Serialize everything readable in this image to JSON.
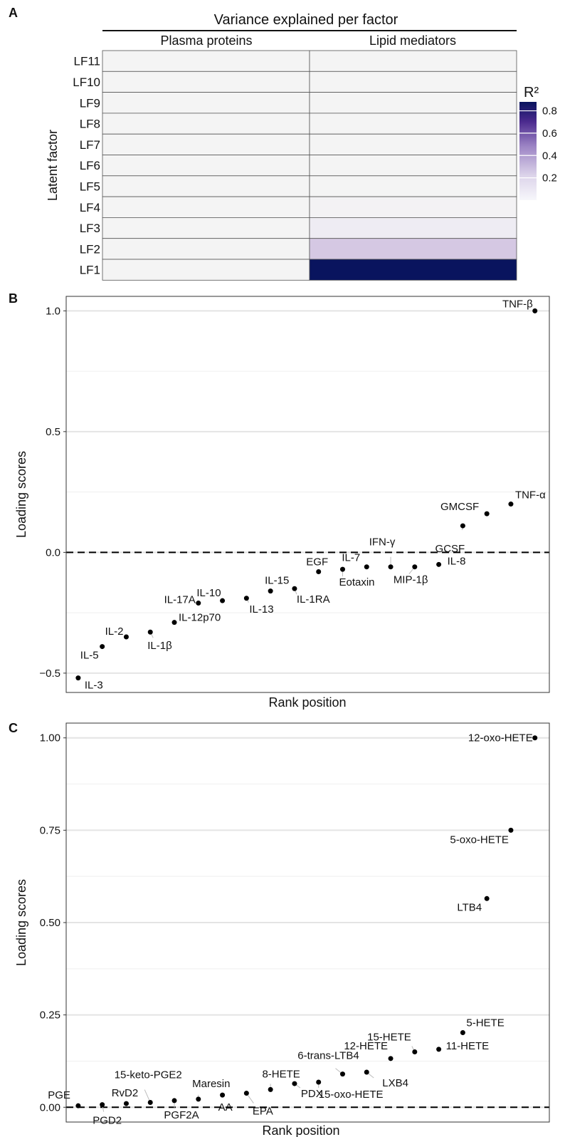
{
  "panel_letters": [
    "A",
    "B",
    "C"
  ],
  "colors": {
    "heat_low": "#f4f4f4",
    "heat_high": "#09145e",
    "point": "#000000",
    "grid": "#e6e6e6"
  },
  "chart_data": [
    {
      "type": "heatmap",
      "title": "Variance explained per factor",
      "ylabel": "Latent factor",
      "columns": [
        "Plasma proteins",
        "Lipid mediators"
      ],
      "rows": [
        "LF11",
        "LF10",
        "LF9",
        "LF8",
        "LF7",
        "LF6",
        "LF5",
        "LF4",
        "LF3",
        "LF2",
        "LF1"
      ],
      "values": [
        [
          0.0,
          0.0
        ],
        [
          0.0,
          0.0
        ],
        [
          0.0,
          0.0
        ],
        [
          0.0,
          0.0
        ],
        [
          0.0,
          0.0
        ],
        [
          0.0,
          0.0
        ],
        [
          0.0,
          0.0
        ],
        [
          0.0,
          0.01
        ],
        [
          0.0,
          0.04
        ],
        [
          0.0,
          0.18
        ],
        [
          0.0,
          0.88
        ]
      ],
      "legend": {
        "title": "R²",
        "ticks": [
          "0.8",
          "0.6",
          "0.4",
          "0.2"
        ],
        "tick_values": [
          0.8,
          0.6,
          0.4,
          0.2
        ],
        "range": [
          0,
          0.88
        ]
      }
    },
    {
      "type": "scatter",
      "xlabel": "Rank position",
      "ylabel": "Loading scores",
      "ylim": [
        -0.58,
        1.06
      ],
      "yticks": [
        1.0,
        0.5,
        0.0,
        -0.5
      ],
      "ytick_labels": [
        "1.0",
        "0.5",
        "0.0",
        "−0.5"
      ],
      "reference_line": 0,
      "grid": true,
      "points": [
        {
          "label": "IL-3",
          "rank": 1,
          "value": -0.52
        },
        {
          "label": "IL-5",
          "rank": 2,
          "value": -0.39
        },
        {
          "label": "IL-2",
          "rank": 3,
          "value": -0.35
        },
        {
          "label": "IL-1β",
          "rank": 4,
          "value": -0.33
        },
        {
          "label": "IL-12p70",
          "rank": 5,
          "value": -0.29
        },
        {
          "label": "IL-17A",
          "rank": 6,
          "value": -0.21
        },
        {
          "label": "IL-10",
          "rank": 7,
          "value": -0.2
        },
        {
          "label": "IL-13",
          "rank": 8,
          "value": -0.19
        },
        {
          "label": "IL-15",
          "rank": 9,
          "value": -0.16
        },
        {
          "label": "IL-1RA",
          "rank": 10,
          "value": -0.15
        },
        {
          "label": "EGF",
          "rank": 11,
          "value": -0.08
        },
        {
          "label": "Eotaxin",
          "rank": 12,
          "value": -0.07
        },
        {
          "label": "IL-7",
          "rank": 13,
          "value": -0.06
        },
        {
          "label": "IFN-γ",
          "rank": 14,
          "value": -0.06
        },
        {
          "label": "MIP-1β",
          "rank": 15,
          "value": -0.06
        },
        {
          "label": "IL-8",
          "rank": 16,
          "value": -0.05
        },
        {
          "label": "GCSF",
          "rank": 17,
          "value": 0.11
        },
        {
          "label": "GMCSF",
          "rank": 18,
          "value": 0.16
        },
        {
          "label": "TNF-α",
          "rank": 19,
          "value": 0.2
        },
        {
          "label": "TNF-β",
          "rank": 20,
          "value": 1.0
        }
      ]
    },
    {
      "type": "scatter",
      "xlabel": "Rank position",
      "ylabel": "Loading scores",
      "ylim": [
        -0.04,
        1.04
      ],
      "yticks": [
        1.0,
        0.75,
        0.5,
        0.25,
        0.0
      ],
      "ytick_labels": [
        "1.00",
        "0.75",
        "0.50",
        "0.25",
        "0.00"
      ],
      "reference_line": 0,
      "grid": true,
      "points": [
        {
          "label": "PGE",
          "rank": 1,
          "value": 0.004
        },
        {
          "label": "PGD2",
          "rank": 2,
          "value": 0.007
        },
        {
          "label": "RvD2",
          "rank": 3,
          "value": 0.01
        },
        {
          "label": "15-keto-PGE2",
          "rank": 4,
          "value": 0.013
        },
        {
          "label": "PGF2A",
          "rank": 5,
          "value": 0.018
        },
        {
          "label": "Maresin",
          "rank": 6,
          "value": 0.022
        },
        {
          "label": "AA",
          "rank": 7,
          "value": 0.033
        },
        {
          "label": "EPA",
          "rank": 8,
          "value": 0.038
        },
        {
          "label": "8-HETE",
          "rank": 9,
          "value": 0.048
        },
        {
          "label": "PDX",
          "rank": 10,
          "value": 0.064
        },
        {
          "label": "15-oxo-HETE",
          "rank": 11,
          "value": 0.068
        },
        {
          "label": "6-trans-LTB4",
          "rank": 12,
          "value": 0.09
        },
        {
          "label": "LXB4",
          "rank": 13,
          "value": 0.095
        },
        {
          "label": "12-HETE",
          "rank": 14,
          "value": 0.132
        },
        {
          "label": "15-HETE",
          "rank": 15,
          "value": 0.15
        },
        {
          "label": "11-HETE",
          "rank": 16,
          "value": 0.157
        },
        {
          "label": "5-HETE",
          "rank": 17,
          "value": 0.202
        },
        {
          "label": "LTB4",
          "rank": 18,
          "value": 0.565
        },
        {
          "label": "5-oxo-HETE",
          "rank": 19,
          "value": 0.75
        },
        {
          "label": "12-oxo-HETE",
          "rank": 20,
          "value": 1.0
        }
      ]
    }
  ]
}
